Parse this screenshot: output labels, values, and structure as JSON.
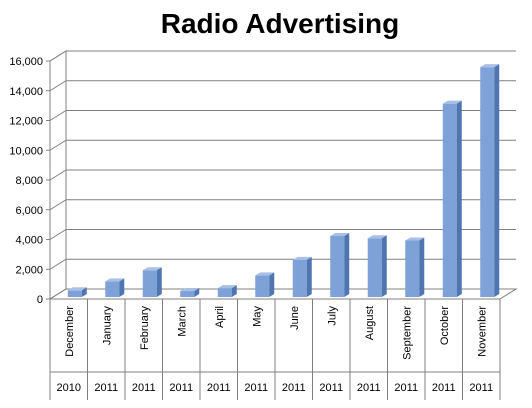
{
  "chart_data": {
    "type": "bar",
    "title": "Radio Advertising",
    "xlabel": "",
    "ylabel": "",
    "ylim": [
      0,
      16000
    ],
    "yticks": [
      0,
      2000,
      4000,
      6000,
      8000,
      10000,
      12000,
      14000,
      16000
    ],
    "ytick_labels": [
      "0",
      "2,000",
      "4,000",
      "6,000",
      "8,000",
      "10,000",
      "12,000",
      "14,000",
      "16,000"
    ],
    "grid": true,
    "legend": "none",
    "style": "3d-column",
    "categories": [
      "December",
      "January",
      "February",
      "March",
      "April",
      "May",
      "June",
      "July",
      "August",
      "September",
      "October",
      "November"
    ],
    "years": [
      "2010",
      "2011",
      "2011",
      "2011",
      "2011",
      "2011",
      "2011",
      "2011",
      "2011",
      "2011",
      "2011",
      "2011"
    ],
    "values": [
      450,
      1050,
      1800,
      400,
      600,
      1450,
      2500,
      4100,
      3950,
      3800,
      13000,
      15450
    ],
    "colors": {
      "bar_front": "#7ea2d7",
      "bar_side": "#4f76b0",
      "bar_top": "#a8c0e6",
      "grid": "#808080",
      "axis": "#808080"
    }
  }
}
